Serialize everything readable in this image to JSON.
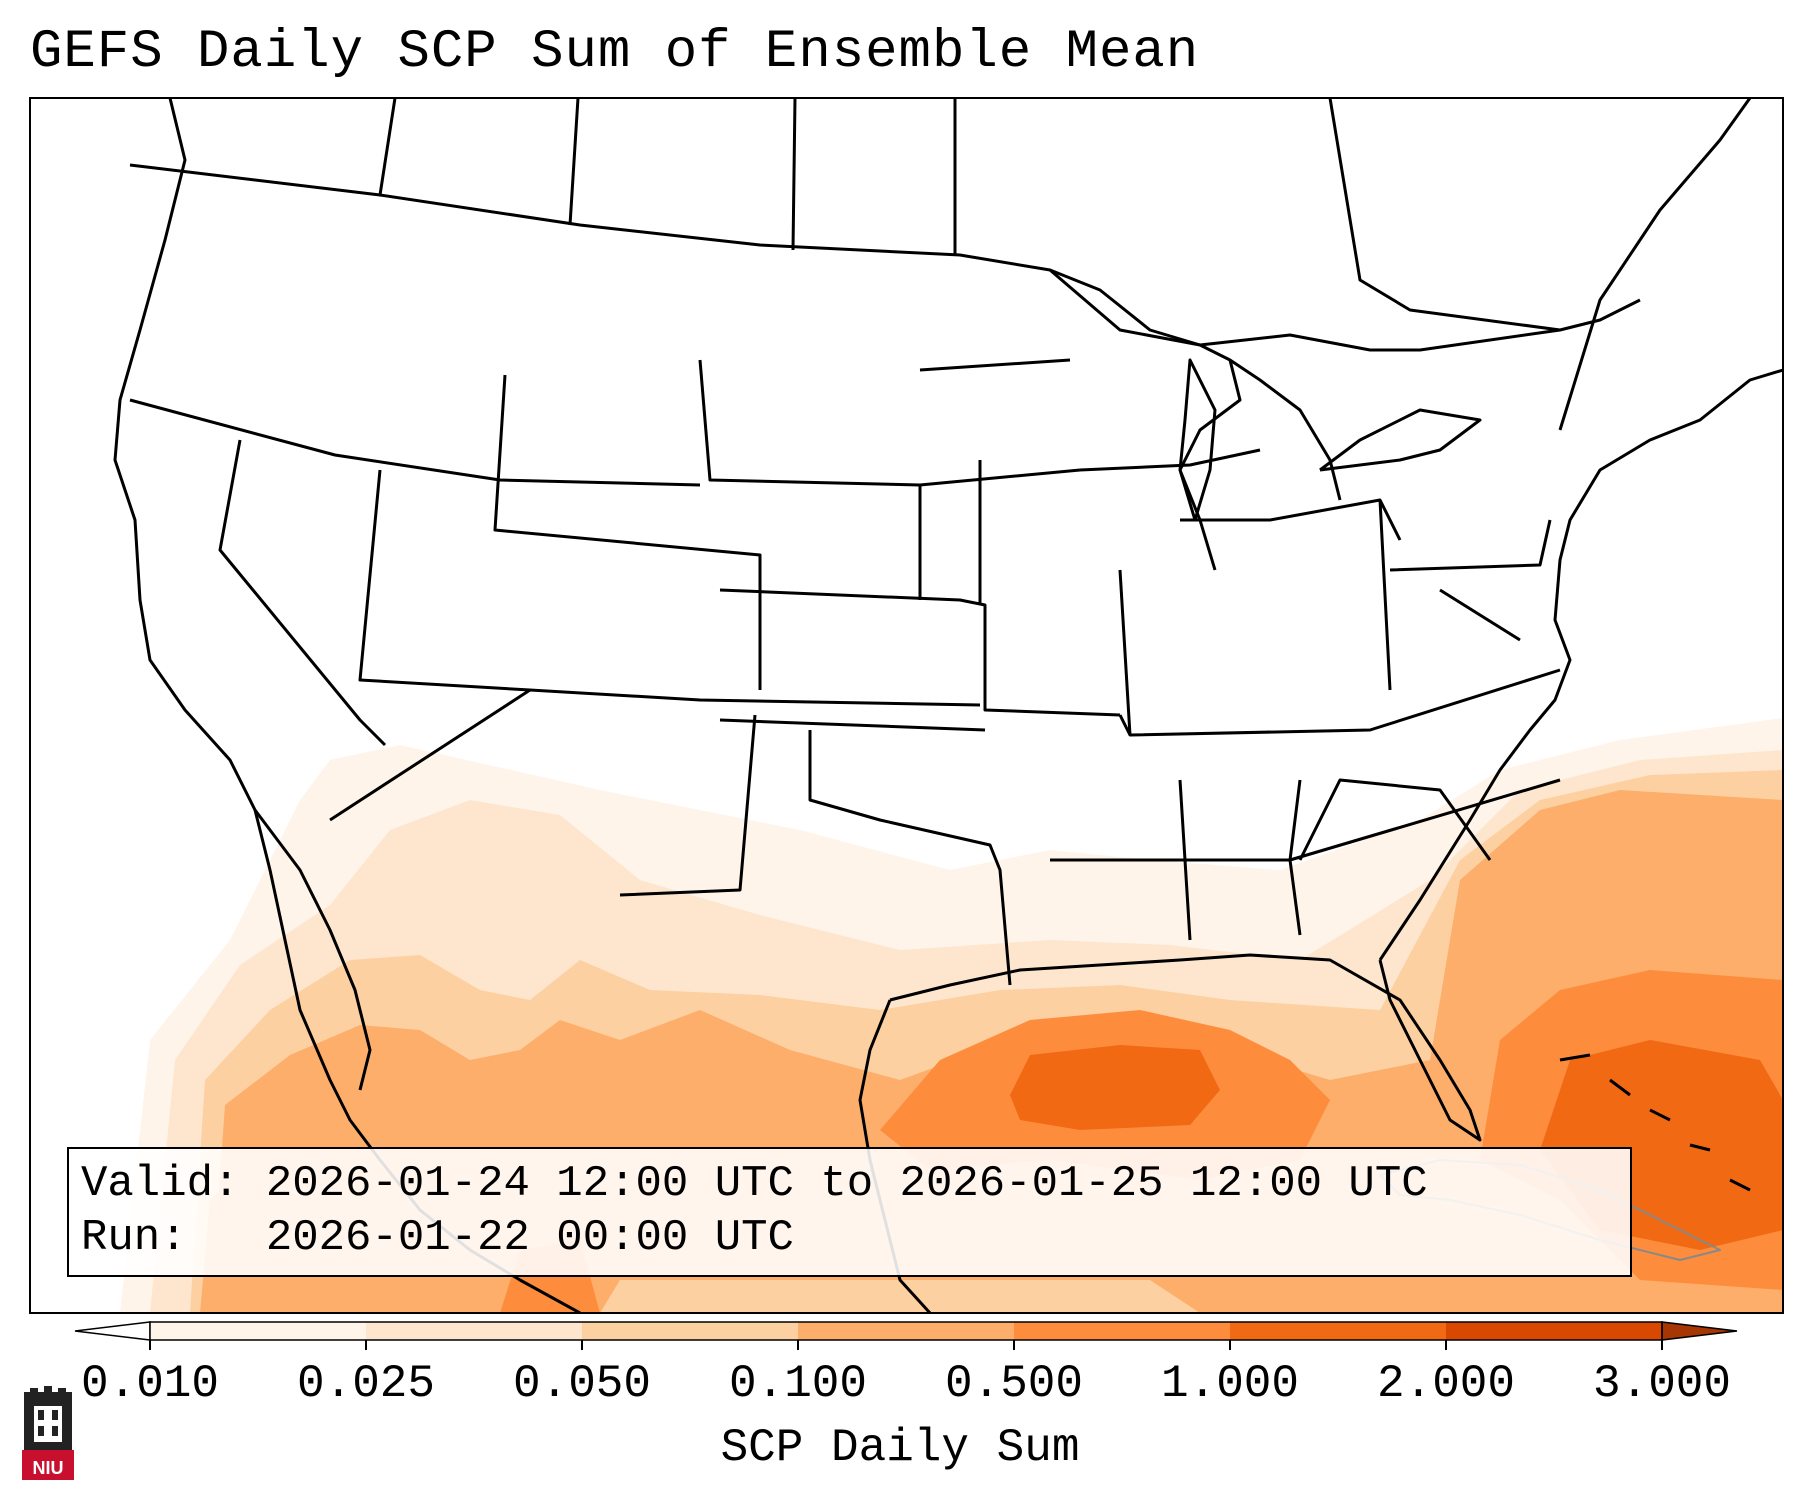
{
  "title": "GEFS Daily SCP Sum of Ensemble Mean",
  "info": {
    "valid_label": "Valid:",
    "valid_value": "2026-01-24 12:00 UTC to 2026-01-25 12:00 UTC",
    "run_label": "Run:",
    "run_value": "2026-01-22 00:00 UTC"
  },
  "colorbar": {
    "label": "SCP Daily Sum",
    "ticks": [
      "0.010",
      "0.025",
      "0.050",
      "0.100",
      "0.500",
      "1.000",
      "2.000",
      "3.000"
    ],
    "colors": [
      "#fff4ea",
      "#fee6ce",
      "#fdd0a2",
      "#fdae6b",
      "#fd8d3c",
      "#f16913",
      "#d94801"
    ],
    "under_color": "#ffffff",
    "over_color": "#a63603"
  },
  "logo_text": "NIU",
  "icons": [
    "niu-logo-icon"
  ]
}
